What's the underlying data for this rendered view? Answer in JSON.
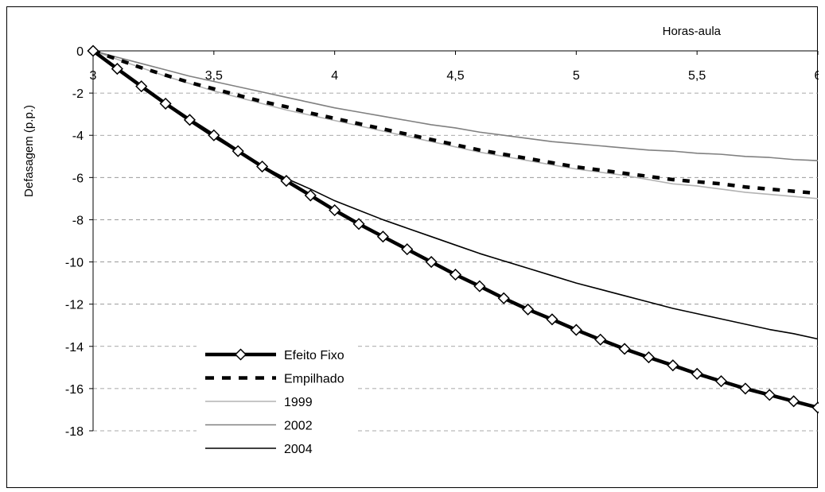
{
  "chart_data": {
    "type": "line",
    "title": "",
    "xlabel": "Horas-aula",
    "ylabel": "Defasagem (p.p.)",
    "xlim": [
      3,
      6
    ],
    "ylim": [
      -18,
      0
    ],
    "xticks": [
      3,
      3.5,
      4,
      4.5,
      5,
      5.5,
      6
    ],
    "xtick_labels": [
      "3",
      "3,5",
      "4",
      "4,5",
      "5",
      "5,5",
      "6"
    ],
    "yticks": [
      0,
      -2,
      -4,
      -6,
      -8,
      -10,
      -12,
      -14,
      -16,
      -18
    ],
    "ytick_labels": [
      "0",
      "-2",
      "-4",
      "-6",
      "-8",
      "-10",
      "-12",
      "-14",
      "-16",
      "-18"
    ],
    "grid": "horizontal dashed",
    "legend_position": "bottom-left",
    "x": [
      3.0,
      3.1,
      3.2,
      3.3,
      3.4,
      3.5,
      3.6,
      3.7,
      3.8,
      3.9,
      4.0,
      4.1,
      4.2,
      4.3,
      4.4,
      4.5,
      4.6,
      4.7,
      4.8,
      4.9,
      5.0,
      5.1,
      5.2,
      5.3,
      5.4,
      5.5,
      5.6,
      5.7,
      5.8,
      5.9,
      6.0
    ],
    "series": [
      {
        "name": "Efeito Fixo",
        "color": "#000000",
        "style": "thick-solid-diamond",
        "values": [
          0,
          -0.85,
          -1.68,
          -2.5,
          -3.27,
          -4.0,
          -4.75,
          -5.48,
          -6.16,
          -6.85,
          -7.55,
          -8.2,
          -8.8,
          -9.4,
          -10.0,
          -10.6,
          -11.15,
          -11.72,
          -12.25,
          -12.72,
          -13.22,
          -13.68,
          -14.12,
          -14.52,
          -14.9,
          -15.3,
          -15.65,
          -16.0,
          -16.3,
          -16.6,
          -16.9
        ]
      },
      {
        "name": "Empilhado",
        "color": "#000000",
        "style": "dashed",
        "values": [
          0,
          -0.4,
          -0.8,
          -1.15,
          -1.5,
          -1.8,
          -2.1,
          -2.4,
          -2.65,
          -2.95,
          -3.2,
          -3.45,
          -3.7,
          -3.95,
          -4.2,
          -4.45,
          -4.7,
          -4.9,
          -5.1,
          -5.3,
          -5.5,
          -5.65,
          -5.8,
          -5.95,
          -6.1,
          -6.2,
          -6.3,
          -6.45,
          -6.55,
          -6.65,
          -6.75
        ]
      },
      {
        "name": "1999",
        "color": "#b3b3b3",
        "style": "thin-solid",
        "values": [
          0,
          -0.4,
          -0.8,
          -1.2,
          -1.55,
          -1.9,
          -2.2,
          -2.5,
          -2.8,
          -3.05,
          -3.3,
          -3.55,
          -3.8,
          -4.05,
          -4.3,
          -4.55,
          -4.8,
          -5.0,
          -5.2,
          -5.4,
          -5.6,
          -5.75,
          -5.9,
          -6.1,
          -6.3,
          -6.4,
          -6.55,
          -6.7,
          -6.8,
          -6.9,
          -7.0
        ]
      },
      {
        "name": "2002",
        "color": "#808080",
        "style": "thin-solid",
        "values": [
          0,
          -0.3,
          -0.6,
          -0.9,
          -1.2,
          -1.45,
          -1.7,
          -1.95,
          -2.2,
          -2.45,
          -2.7,
          -2.9,
          -3.1,
          -3.3,
          -3.5,
          -3.65,
          -3.85,
          -4.0,
          -4.15,
          -4.3,
          -4.4,
          -4.5,
          -4.6,
          -4.7,
          -4.75,
          -4.85,
          -4.9,
          -5.0,
          -5.05,
          -5.15,
          -5.2
        ]
      },
      {
        "name": "2004",
        "color": "#000000",
        "style": "thin-solid",
        "values": [
          0,
          -0.9,
          -1.75,
          -2.55,
          -3.35,
          -4.1,
          -4.8,
          -5.45,
          -6.05,
          -6.55,
          -7.1,
          -7.55,
          -8.0,
          -8.4,
          -8.8,
          -9.2,
          -9.6,
          -9.95,
          -10.3,
          -10.65,
          -11.0,
          -11.3,
          -11.6,
          -11.9,
          -12.2,
          -12.45,
          -12.7,
          -12.95,
          -13.2,
          -13.4,
          -13.65
        ]
      }
    ]
  }
}
